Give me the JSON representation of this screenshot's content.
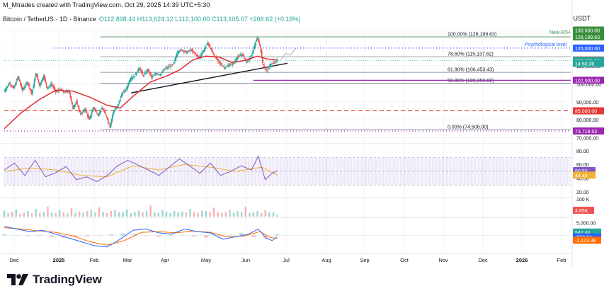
{
  "header": {
    "creator": "M_Mtrades created with TradingView.com, Oct 29, 2025 14:39 UTC+5:30",
    "symbol": "Bitcoin / TetherUS · 1D · Binance",
    "ohlc": "O112,898.44 H113,624.12 L112,100.00 C113,105.07 +206.62 (+0.18%)",
    "currency": "USDT"
  },
  "brand": {
    "name": "TradingView"
  },
  "colors": {
    "up": "#26a69a",
    "down": "#ef5350",
    "ma": "#e02a35",
    "support": "#9c27b0",
    "resistance": "#2962ff",
    "ath": "#388e3c",
    "dashed": "#e53935"
  },
  "chart_data": {
    "type": "candlestick",
    "symbol": "Bitcoin / TetherUS",
    "interval": "1D",
    "exchange": "Binance",
    "x_ticks": [
      "Dec",
      "2025",
      "Feb",
      "Mar",
      "Apr",
      "May",
      "Jun",
      "Jul",
      "Aug",
      "Sep",
      "Oct",
      "Nov",
      "Dec",
      "2026",
      "Feb"
    ],
    "price_axis": {
      "ticks": [
        "130,000.00",
        "120,000.00",
        "110,000.00",
        "100,000.00",
        "90,000.00",
        "80,000.00",
        "70,000.00"
      ],
      "ylim": [
        67000,
        131000
      ]
    },
    "price_series": [
      {
        "t": 0,
        "v": 96000
      },
      {
        "t": 6,
        "v": 100500
      },
      {
        "t": 11,
        "v": 97500
      },
      {
        "t": 16,
        "v": 104000
      },
      {
        "t": 21,
        "v": 96500
      },
      {
        "t": 27,
        "v": 101000
      },
      {
        "t": 32,
        "v": 94500
      },
      {
        "t": 37,
        "v": 106000
      },
      {
        "t": 41,
        "v": 99000
      },
      {
        "t": 46,
        "v": 104500
      },
      {
        "t": 50,
        "v": 97500
      },
      {
        "t": 55,
        "v": 100000
      },
      {
        "t": 60,
        "v": 95500
      },
      {
        "t": 65,
        "v": 97000
      },
      {
        "t": 70,
        "v": 95000
      },
      {
        "t": 75,
        "v": 96500
      },
      {
        "t": 80,
        "v": 86500
      },
      {
        "t": 84,
        "v": 90000
      },
      {
        "t": 89,
        "v": 83000
      },
      {
        "t": 94,
        "v": 86000
      },
      {
        "t": 99,
        "v": 80000
      },
      {
        "t": 104,
        "v": 87000
      },
      {
        "t": 109,
        "v": 82500
      },
      {
        "t": 114,
        "v": 86500
      },
      {
        "t": 119,
        "v": 82000
      },
      {
        "t": 123,
        "v": 76000
      },
      {
        "t": 127,
        "v": 84500
      },
      {
        "t": 132,
        "v": 87500
      },
      {
        "t": 137,
        "v": 94500
      },
      {
        "t": 142,
        "v": 97000
      },
      {
        "t": 147,
        "v": 103000
      },
      {
        "t": 152,
        "v": 104500
      },
      {
        "t": 157,
        "v": 109000
      },
      {
        "t": 162,
        "v": 104500
      },
      {
        "t": 167,
        "v": 108000
      },
      {
        "t": 172,
        "v": 103500
      },
      {
        "t": 177,
        "v": 106000
      },
      {
        "t": 182,
        "v": 105000
      },
      {
        "t": 187,
        "v": 108500
      },
      {
        "t": 192,
        "v": 109500
      },
      {
        "t": 197,
        "v": 111000
      },
      {
        "t": 202,
        "v": 118000
      },
      {
        "t": 207,
        "v": 119000
      },
      {
        "t": 212,
        "v": 117500
      },
      {
        "t": 217,
        "v": 119000
      },
      {
        "t": 222,
        "v": 117000
      },
      {
        "t": 227,
        "v": 114500
      },
      {
        "t": 232,
        "v": 118500
      },
      {
        "t": 237,
        "v": 123000
      },
      {
        "t": 242,
        "v": 118000
      },
      {
        "t": 247,
        "v": 114000
      },
      {
        "t": 252,
        "v": 111000
      },
      {
        "t": 257,
        "v": 109000
      },
      {
        "t": 262,
        "v": 110500
      },
      {
        "t": 267,
        "v": 111500
      },
      {
        "t": 272,
        "v": 115000
      },
      {
        "t": 277,
        "v": 116500
      },
      {
        "t": 282,
        "v": 112500
      },
      {
        "t": 287,
        "v": 114500
      },
      {
        "t": 292,
        "v": 122000
      },
      {
        "t": 295,
        "v": 125500
      },
      {
        "t": 298,
        "v": 121000
      },
      {
        "t": 301,
        "v": 111500
      },
      {
        "t": 304,
        "v": 108000
      },
      {
        "t": 307,
        "v": 107500
      },
      {
        "t": 310,
        "v": 111000
      },
      {
        "t": 314,
        "v": 111500
      },
      {
        "t": 318,
        "v": 113105
      }
    ],
    "moving_average": {
      "name": "",
      "color": "#e02a35",
      "values": [
        {
          "t": 0,
          "v": 75000
        },
        {
          "t": 20,
          "v": 84000
        },
        {
          "t": 40,
          "v": 91000
        },
        {
          "t": 60,
          "v": 96500
        },
        {
          "t": 80,
          "v": 96000
        },
        {
          "t": 100,
          "v": 92500
        },
        {
          "t": 120,
          "v": 88000
        },
        {
          "t": 135,
          "v": 86500
        },
        {
          "t": 150,
          "v": 93000
        },
        {
          "t": 170,
          "v": 101000
        },
        {
          "t": 190,
          "v": 104500
        },
        {
          "t": 205,
          "v": 108000
        },
        {
          "t": 220,
          "v": 113500
        },
        {
          "t": 235,
          "v": 115500
        },
        {
          "t": 250,
          "v": 115000
        },
        {
          "t": 265,
          "v": 112000
        },
        {
          "t": 280,
          "v": 113000
        },
        {
          "t": 295,
          "v": 115500
        },
        {
          "t": 305,
          "v": 114000
        },
        {
          "t": 318,
          "v": 113336.15
        }
      ]
    },
    "levels": [
      {
        "label": "100.00% (126,199.63)",
        "value": 126199.63,
        "style": "fib"
      },
      {
        "label": "78.60% (115,137.62)",
        "value": 115137.62,
        "style": "fib"
      },
      {
        "label": "61.80% (106,453.43)",
        "value": 106453.43,
        "style": "fib"
      },
      {
        "label": "50.00% (100,353.82)",
        "value": 100353.82,
        "style": "fib"
      },
      {
        "label": "0.00% (74,508.00)",
        "value": 74508.0,
        "style": "fib"
      },
      {
        "label": "",
        "value": 120000,
        "style": "resistance"
      },
      {
        "label": "",
        "value": 102000,
        "style": "support"
      },
      {
        "label": "",
        "value": 85000,
        "style": "dashed"
      },
      {
        "label": "",
        "value": 73719.53,
        "style": "dotted"
      }
    ],
    "annotations": [
      "New ATH",
      "Psychological level"
    ],
    "price_badges": [
      {
        "text": "130,000.00",
        "value": 130000,
        "kind": "ath"
      },
      {
        "text": "126,199.63",
        "value": 126199.63,
        "kind": "ath"
      },
      {
        "text": "120,000.00",
        "value": 120000,
        "kind": "resistance"
      },
      {
        "text": "113,336.15",
        "value": 113336.15,
        "kind": "ma"
      },
      {
        "text": "113,105.07",
        "value": 113105.07,
        "kind": "last"
      },
      {
        "text": "14:50:39",
        "value": 111400,
        "kind": "timer"
      },
      {
        "text": "102,000.00",
        "value": 102000,
        "kind": "support"
      },
      {
        "text": "85,000.00",
        "value": 85000,
        "kind": "dashed"
      },
      {
        "text": "73,719.53",
        "value": 73719.53,
        "kind": "dotted"
      }
    ],
    "rsi": {
      "ticks": [
        "80.00",
        "60.00",
        "40.00",
        "20.00"
      ],
      "ylim": [
        15,
        88
      ],
      "band": [
        30,
        70
      ],
      "values": [
        {
          "t": 0,
          "v": 52
        },
        {
          "t": 12,
          "v": 62
        },
        {
          "t": 24,
          "v": 44
        },
        {
          "t": 36,
          "v": 66
        },
        {
          "t": 48,
          "v": 42
        },
        {
          "t": 60,
          "v": 48
        },
        {
          "t": 72,
          "v": 57
        },
        {
          "t": 84,
          "v": 38
        },
        {
          "t": 96,
          "v": 42
        },
        {
          "t": 108,
          "v": 35
        },
        {
          "t": 120,
          "v": 44
        },
        {
          "t": 132,
          "v": 58
        },
        {
          "t": 144,
          "v": 66
        },
        {
          "t": 156,
          "v": 59
        },
        {
          "t": 168,
          "v": 52
        },
        {
          "t": 180,
          "v": 44
        },
        {
          "t": 192,
          "v": 56
        },
        {
          "t": 204,
          "v": 68
        },
        {
          "t": 216,
          "v": 58
        },
        {
          "t": 228,
          "v": 47
        },
        {
          "t": 240,
          "v": 62
        },
        {
          "t": 252,
          "v": 44
        },
        {
          "t": 264,
          "v": 50
        },
        {
          "t": 276,
          "v": 58
        },
        {
          "t": 288,
          "v": 52
        },
        {
          "t": 296,
          "v": 72
        },
        {
          "t": 304,
          "v": 38
        },
        {
          "t": 312,
          "v": 47
        },
        {
          "t": 318,
          "v": 50.93
        }
      ],
      "signal": [
        {
          "t": 0,
          "v": 50
        },
        {
          "t": 30,
          "v": 55
        },
        {
          "t": 60,
          "v": 52
        },
        {
          "t": 90,
          "v": 44
        },
        {
          "t": 120,
          "v": 42
        },
        {
          "t": 150,
          "v": 58
        },
        {
          "t": 180,
          "v": 52
        },
        {
          "t": 210,
          "v": 60
        },
        {
          "t": 240,
          "v": 56
        },
        {
          "t": 270,
          "v": 50
        },
        {
          "t": 300,
          "v": 56
        },
        {
          "t": 318,
          "v": 44.46
        }
      ],
      "badges": [
        "50.93",
        "44.46"
      ]
    },
    "volume": {
      "ticks": [
        "100 K"
      ],
      "badge": "4.65K",
      "max": 110000,
      "values": [
        38,
        22,
        30,
        44,
        18,
        26,
        34,
        20,
        48,
        24,
        30,
        62,
        26,
        22,
        40,
        28,
        20,
        52,
        24,
        32,
        28,
        36,
        44,
        26,
        58,
        30,
        22,
        34,
        40,
        26,
        28,
        46,
        22,
        30,
        38,
        26,
        34,
        70,
        28,
        24,
        42,
        30,
        22,
        36,
        28,
        32,
        26,
        48,
        30,
        24,
        38,
        34,
        26,
        56,
        28,
        22,
        30,
        44,
        26,
        34,
        30,
        62,
        24,
        28,
        36,
        22,
        40,
        30,
        26,
        8
      ]
    },
    "macd": {
      "ticks": [
        "5,000.00"
      ],
      "badges": [
        "542.44",
        "-580.94",
        "-1,123.38"
      ],
      "ylim": [
        -6500,
        6500
      ],
      "macd_line": [
        {
          "t": 0,
          "v": 3500
        },
        {
          "t": 15,
          "v": 2500
        },
        {
          "t": 30,
          "v": 1500
        },
        {
          "t": 45,
          "v": 2000
        },
        {
          "t": 60,
          "v": 500
        },
        {
          "t": 75,
          "v": -1000
        },
        {
          "t": 90,
          "v": -2500
        },
        {
          "t": 105,
          "v": -4000
        },
        {
          "t": 120,
          "v": -4500
        },
        {
          "t": 135,
          "v": -1500
        },
        {
          "t": 150,
          "v": 2000
        },
        {
          "t": 165,
          "v": 2500
        },
        {
          "t": 180,
          "v": 1000
        },
        {
          "t": 195,
          "v": 500
        },
        {
          "t": 210,
          "v": 2500
        },
        {
          "t": 225,
          "v": 1500
        },
        {
          "t": 240,
          "v": 1000
        },
        {
          "t": 255,
          "v": -1500
        },
        {
          "t": 270,
          "v": -500
        },
        {
          "t": 285,
          "v": 500
        },
        {
          "t": 296,
          "v": 2500
        },
        {
          "t": 305,
          "v": -1000
        },
        {
          "t": 312,
          "v": -2000
        },
        {
          "t": 318,
          "v": -580.94
        }
      ],
      "signal_line": [
        {
          "t": 0,
          "v": 3000
        },
        {
          "t": 20,
          "v": 2500
        },
        {
          "t": 40,
          "v": 1800
        },
        {
          "t": 60,
          "v": 1200
        },
        {
          "t": 80,
          "v": -200
        },
        {
          "t": 100,
          "v": -2500
        },
        {
          "t": 120,
          "v": -3800
        },
        {
          "t": 140,
          "v": -2000
        },
        {
          "t": 160,
          "v": 1200
        },
        {
          "t": 180,
          "v": 1500
        },
        {
          "t": 200,
          "v": 1000
        },
        {
          "t": 220,
          "v": 1700
        },
        {
          "t": 240,
          "v": 1200
        },
        {
          "t": 260,
          "v": -600
        },
        {
          "t": 280,
          "v": -200
        },
        {
          "t": 298,
          "v": 1500
        },
        {
          "t": 310,
          "v": -800
        },
        {
          "t": 318,
          "v": -1123.38
        }
      ],
      "histogram": [
        500,
        0,
        -300,
        200,
        -600,
        -900,
        -700,
        -400,
        -100,
        400,
        800,
        600,
        -200,
        -500,
        300,
        -100,
        -400,
        -800,
        -300,
        200,
        900,
        -700,
        -1100,
        542
      ]
    }
  }
}
